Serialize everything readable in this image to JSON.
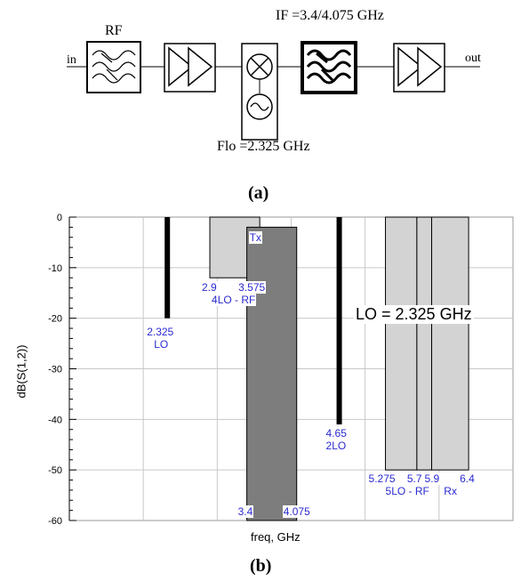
{
  "figure_a": {
    "caption": "(a)",
    "if_label": "IF =3.4/4.075 GHz",
    "rf_label": "RF",
    "in_label": "in",
    "out_label": "out",
    "flo_label": "Flo =2.325 GHz"
  },
  "figure_b": {
    "caption": "(b)",
    "lo_text": "LO = 2.325 GHz"
  },
  "chart_data": {
    "type": "bar",
    "xlabel": "freq, GHz",
    "ylabel": "dB(S(1,2))",
    "xlim": [
      1.0,
      7.0
    ],
    "ylim": [
      -60,
      0
    ],
    "yticks": [
      0,
      -10,
      -20,
      -30,
      -40,
      -50,
      -60
    ],
    "grid": true,
    "spikes": [
      {
        "x": 2.325,
        "bottom": -20,
        "top": 0,
        "labels": [
          "2.325",
          "LO"
        ]
      },
      {
        "x": 4.65,
        "bottom": -41,
        "top": 0,
        "labels": [
          "4.65",
          "2LO"
        ]
      }
    ],
    "bands": [
      {
        "x0": 2.9,
        "x1": 3.575,
        "top": 0,
        "bottom": -12,
        "fill": "#d3d3d3",
        "labels": [
          "2.9",
          "3.575",
          "4LO - RF"
        ]
      },
      {
        "x0": 3.4,
        "x1": 4.075,
        "top": -2,
        "bottom": -60,
        "fill": "#7d7d7d",
        "labels": [
          "Tx",
          "3.4",
          "4.075"
        ]
      },
      {
        "x0": 5.275,
        "x1": 5.7,
        "top": 0,
        "bottom": -50,
        "fill": "#d3d3d3",
        "labels": [
          "5.275",
          "5.7",
          "5LO - RF"
        ]
      },
      {
        "x0": 5.7,
        "x1": 5.9,
        "top": 0,
        "bottom": -50,
        "fill": "#d3d3d3",
        "labels": []
      },
      {
        "x0": 5.9,
        "x1": 6.4,
        "top": 0,
        "bottom": -50,
        "fill": "#d3d3d3",
        "labels": [
          "5.9",
          "6.4",
          "Rx"
        ]
      }
    ]
  }
}
